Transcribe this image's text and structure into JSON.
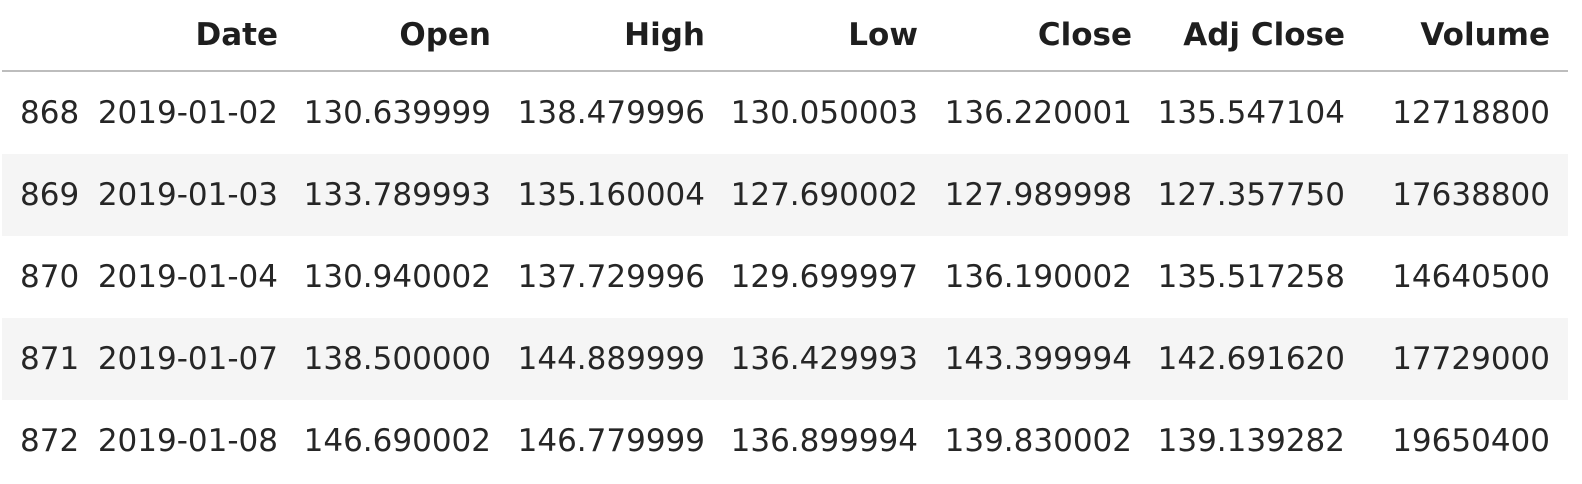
{
  "table": {
    "columns": [
      "",
      "Date",
      "Open",
      "High",
      "Low",
      "Close",
      "Adj Close",
      "Volume"
    ],
    "rows": [
      [
        "868",
        "2019-01-02",
        "130.639999",
        "138.479996",
        "130.050003",
        "136.220001",
        "135.547104",
        "12718800"
      ],
      [
        "869",
        "2019-01-03",
        "133.789993",
        "135.160004",
        "127.690002",
        "127.989998",
        "127.357750",
        "17638800"
      ],
      [
        "870",
        "2019-01-04",
        "130.940002",
        "137.729996",
        "129.699997",
        "136.190002",
        "135.517258",
        "14640500"
      ],
      [
        "871",
        "2019-01-07",
        "138.500000",
        "144.889999",
        "136.429993",
        "143.399994",
        "142.691620",
        "17729000"
      ],
      [
        "872",
        "2019-01-08",
        "146.690002",
        "146.779999",
        "136.899994",
        "139.830002",
        "139.139282",
        "19650400"
      ]
    ]
  },
  "colors": {
    "stripe": "#f5f5f5",
    "header_rule": "#bdbdbd"
  }
}
